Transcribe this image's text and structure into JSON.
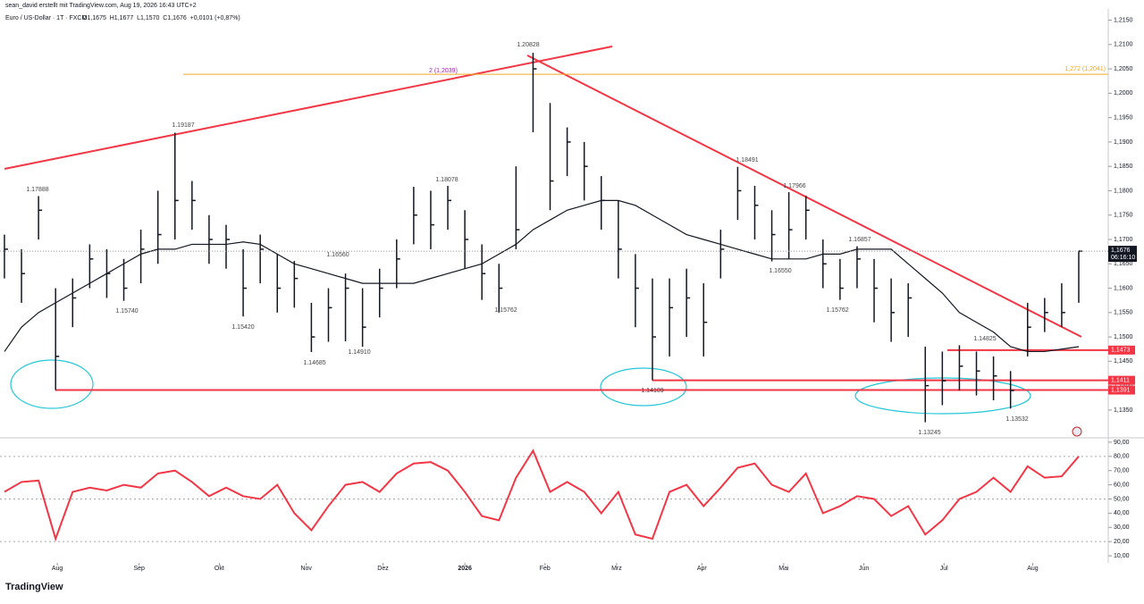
{
  "header": {
    "author": "sean_david erstellt mit TradingView.com, Aug 19, 2026 16:43 UTC+2",
    "symbol": "Euro / US-Dollar · 1T · FXCM",
    "ohlc": "O1,1675  H1,1677  L1,1570  C1,1676  +0,0101 (+0,87%)"
  },
  "footer": {
    "brand": "TradingView"
  },
  "chart_data": [
    {
      "type": "ohlc",
      "x": [
        0,
        1,
        2,
        3,
        4,
        5,
        6,
        7,
        8,
        9,
        10,
        11,
        12,
        13,
        14,
        15,
        16,
        17,
        18,
        19,
        20,
        21,
        22,
        23,
        24,
        25,
        26,
        27,
        28,
        29,
        30,
        31,
        32,
        33,
        34,
        35,
        36,
        37,
        38,
        39,
        40,
        41,
        42,
        43,
        44,
        45,
        46,
        47,
        48,
        49,
        50,
        51,
        52,
        53,
        54,
        55,
        56,
        57,
        58,
        59,
        60,
        61,
        62,
        63
      ],
      "xlim": [
        -0.26,
        64.73
      ],
      "xticks": [
        {
          "value": 3.1,
          "label": "Aug"
        },
        {
          "value": 7.9,
          "label": "Sep"
        },
        {
          "value": 12.6,
          "label": "Okt"
        },
        {
          "value": 17.7,
          "label": "Nov"
        },
        {
          "value": 22.2,
          "label": "Dez"
        },
        {
          "value": 27.0,
          "label": "2026"
        },
        {
          "value": 31.7,
          "label": "Feb"
        },
        {
          "value": 35.9,
          "label": "Mrz"
        },
        {
          "value": 40.9,
          "label": "Apr"
        },
        {
          "value": 45.7,
          "label": "Mai"
        },
        {
          "value": 50.4,
          "label": "Jun"
        },
        {
          "value": 55.1,
          "label": "Jul"
        },
        {
          "value": 60.3,
          "label": "Aug"
        }
      ],
      "high": [
        1.171,
        1.168,
        1.1789,
        1.16,
        1.162,
        1.169,
        1.168,
        1.166,
        1.172,
        1.18,
        1.1919,
        1.182,
        1.175,
        1.173,
        1.168,
        1.171,
        1.167,
        1.1656,
        1.157,
        1.16,
        1.163,
        1.16,
        1.164,
        1.17,
        1.1808,
        1.18,
        1.181,
        1.176,
        1.169,
        1.165,
        1.185,
        1.2083,
        1.198,
        1.193,
        1.19,
        1.183,
        1.178,
        1.167,
        1.162,
        1.162,
        1.164,
        1.161,
        1.172,
        1.1849,
        1.181,
        1.176,
        1.1797,
        1.179,
        1.17,
        1.166,
        1.1686,
        1.166,
        1.162,
        1.161,
        1.148,
        1.147,
        1.1483,
        1.147,
        1.146,
        1.143,
        1.157,
        1.158,
        1.161,
        1.1677
      ],
      "low": [
        1.162,
        1.157,
        1.17,
        1.1391,
        1.152,
        1.16,
        1.158,
        1.1574,
        1.161,
        1.165,
        1.17,
        1.172,
        1.165,
        1.164,
        1.1542,
        1.161,
        1.155,
        1.156,
        1.1469,
        1.149,
        1.1491,
        1.148,
        1.154,
        1.16,
        1.169,
        1.168,
        1.172,
        1.164,
        1.1576,
        1.155,
        1.168,
        1.192,
        1.176,
        1.183,
        1.178,
        1.172,
        1.162,
        1.152,
        1.1411,
        1.146,
        1.15,
        1.146,
        1.162,
        1.174,
        1.17,
        1.1655,
        1.166,
        1.17,
        1.16,
        1.1576,
        1.16,
        1.153,
        1.149,
        1.15,
        1.1325,
        1.136,
        1.139,
        1.138,
        1.137,
        1.1353,
        1.146,
        1.151,
        1.152,
        1.157
      ],
      "close": [
        1.168,
        1.163,
        1.176,
        1.146,
        1.158,
        1.166,
        1.163,
        1.16,
        1.168,
        1.171,
        1.178,
        1.178,
        1.17,
        1.17,
        1.16,
        1.168,
        1.16,
        1.162,
        1.15,
        1.156,
        1.16,
        1.152,
        1.16,
        1.166,
        1.175,
        1.173,
        1.178,
        1.17,
        1.163,
        1.16,
        1.172,
        1.205,
        1.182,
        1.19,
        1.185,
        1.178,
        1.168,
        1.16,
        1.15,
        1.156,
        1.158,
        1.153,
        1.168,
        1.18,
        1.177,
        1.171,
        1.172,
        1.176,
        1.165,
        1.16,
        1.166,
        1.16,
        1.155,
        1.158,
        1.14,
        1.141,
        1.144,
        1.143,
        1.142,
        1.139,
        1.152,
        1.155,
        1.155,
        1.1676
      ],
      "ma": [
        1.147,
        1.152,
        1.155,
        1.157,
        1.159,
        1.161,
        1.163,
        1.165,
        1.167,
        1.168,
        1.168,
        1.169,
        1.169,
        1.169,
        1.1695,
        1.169,
        1.167,
        1.165,
        1.164,
        1.163,
        1.162,
        1.161,
        1.161,
        1.161,
        1.161,
        1.162,
        1.163,
        1.164,
        1.165,
        1.167,
        1.169,
        1.172,
        1.174,
        1.176,
        1.177,
        1.178,
        1.178,
        1.177,
        1.175,
        1.173,
        1.171,
        1.17,
        1.169,
        1.168,
        1.167,
        1.166,
        1.166,
        1.166,
        1.167,
        1.167,
        1.168,
        1.168,
        1.168,
        1.165,
        1.162,
        1.159,
        1.155,
        1.153,
        1.151,
        1.148,
        1.147,
        1.147,
        1.1475,
        1.148
      ],
      "color": "#131722",
      "ma_color": "#131722",
      "ylim": [
        1.1293,
        1.2173
      ],
      "yticks": [
        {
          "value": 1.135,
          "label": "1,1350"
        },
        {
          "value": 1.14,
          "label": "1,1400"
        },
        {
          "value": 1.145,
          "label": "1,1450"
        },
        {
          "value": 1.15,
          "label": "1,1500"
        },
        {
          "value": 1.155,
          "label": "1,1550"
        },
        {
          "value": 1.16,
          "label": "1,1600"
        },
        {
          "value": 1.165,
          "label": "1,1650"
        },
        {
          "value": 1.17,
          "label": "1,1700"
        },
        {
          "value": 1.175,
          "label": "1,1750"
        },
        {
          "value": 1.18,
          "label": "1,1800"
        },
        {
          "value": 1.185,
          "label": "1,1850"
        },
        {
          "value": 1.19,
          "label": "1,1900"
        },
        {
          "value": 1.195,
          "label": "1,1950"
        },
        {
          "value": 1.2,
          "label": "1,2000"
        },
        {
          "value": 1.205,
          "label": "1,2050"
        },
        {
          "value": 1.21,
          "label": "1,2100"
        },
        {
          "value": 1.215,
          "label": "1,2150"
        }
      ],
      "levels": [
        {
          "value": 1.1473,
          "label": "1,1473"
        },
        {
          "value": 1.1411,
          "label": "1,1411"
        },
        {
          "value": 1.1391,
          "label": "1,1391"
        }
      ],
      "level_color": "#f23645",
      "last_price": {
        "value": 1.1676,
        "label": "1,1676"
      },
      "countdown": "06:16:10",
      "fib": {
        "value": 1.2039,
        "color": "#f5a623",
        "left_label": "2 (1,2039)",
        "right_label": "1,272 (1,2041)"
      },
      "annotations": [
        "1.17888",
        "1.19187",
        "1.15740",
        "1.15420",
        "1.16560",
        "1.14685",
        "1.14910",
        "1.18078",
        "1.15762",
        "1.20828",
        "1.14109",
        "1.18491",
        "1.17966",
        "1.16550",
        "1.15762",
        "1.16857",
        "1.14825",
        "1.13532",
        "1.13245"
      ]
    },
    {
      "type": "rsi",
      "values": [
        55,
        62,
        63,
        22,
        55,
        58,
        56,
        60,
        58,
        68,
        70,
        62,
        52,
        58,
        52,
        50,
        60,
        40,
        28,
        45,
        60,
        62,
        55,
        68,
        75,
        76,
        70,
        55,
        38,
        35,
        65,
        84,
        55,
        62,
        55,
        40,
        55,
        25,
        22,
        55,
        60,
        45,
        58,
        72,
        75,
        60,
        55,
        68,
        40,
        45,
        52,
        50,
        38,
        45,
        25,
        35,
        50,
        55,
        65,
        55,
        73,
        65,
        66,
        80
      ],
      "color": "#f23645",
      "ylim": [
        5,
        93.1
      ],
      "yticks": [
        {
          "value": 10,
          "label": "10,00"
        },
        {
          "value": 20,
          "label": "20,00"
        },
        {
          "value": 30,
          "label": "30,00"
        },
        {
          "value": 40,
          "label": "40,00"
        },
        {
          "value": 50,
          "label": "50,00"
        },
        {
          "value": 60,
          "label": "60,00"
        },
        {
          "value": 70,
          "label": "70,00"
        },
        {
          "value": 80,
          "label": "80,00"
        },
        {
          "value": 90,
          "label": "90,00"
        }
      ],
      "bands": [
        20,
        50,
        80
      ]
    }
  ]
}
